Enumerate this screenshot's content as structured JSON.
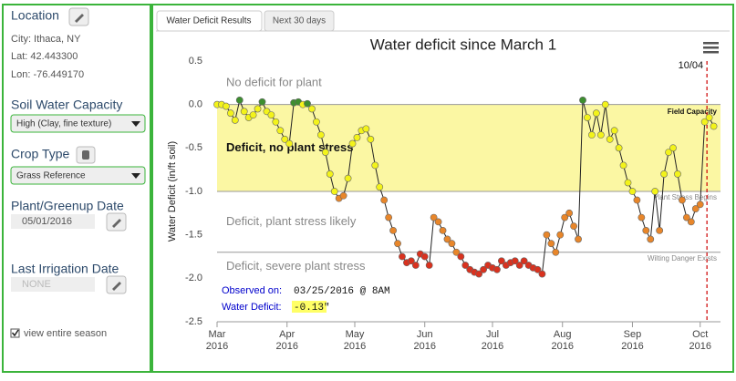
{
  "sidebar": {
    "location": {
      "title": "Location",
      "city": "City: Ithaca, NY",
      "lat": "Lat: 42.443300",
      "lon": "Lon: -76.449170"
    },
    "soil": {
      "title": "Soil Water Capacity",
      "selected": "High (Clay, fine texture)"
    },
    "crop": {
      "title": "Crop Type",
      "selected": "Grass Reference"
    },
    "plant_date": {
      "title": "Plant/Greenup Date",
      "value": "05/01/2016"
    },
    "irrigation": {
      "title": "Last Irrigation Date",
      "value": "NONE"
    },
    "season_checkbox": "view entire season"
  },
  "tabs": [
    "Water Deficit Results",
    "Next 30 days"
  ],
  "chart_data": {
    "type": "line",
    "title": "Water deficit since March 1",
    "y_label": "Water Deficit (in/ft soil)",
    "x": [
      0,
      2,
      4,
      6,
      8,
      10,
      12,
      14,
      16,
      18,
      20,
      22,
      24,
      26,
      28,
      30,
      32,
      34,
      36,
      38,
      40,
      42,
      44,
      46,
      48,
      50,
      52,
      54,
      56,
      58,
      60,
      62,
      64,
      66,
      68,
      70,
      72,
      74,
      76,
      78,
      80,
      82,
      84,
      86,
      88,
      90,
      92,
      94,
      96,
      98,
      100,
      102,
      104,
      106,
      108,
      110,
      112,
      114,
      116,
      118,
      120,
      122,
      124,
      126,
      128,
      130,
      132,
      134,
      136,
      138,
      140,
      142,
      144,
      146,
      148,
      150,
      152,
      154,
      156,
      158,
      160,
      162,
      164,
      166,
      168,
      170,
      172,
      174,
      176,
      178,
      180,
      182,
      184,
      186,
      188,
      190,
      192,
      194,
      196,
      198,
      200,
      202,
      204,
      206,
      208,
      210,
      212,
      214,
      216,
      218,
      220
    ],
    "values": [
      0.0,
      0.0,
      -0.02,
      -0.1,
      -0.18,
      0.05,
      -0.08,
      -0.15,
      -0.12,
      -0.05,
      0.03,
      -0.08,
      -0.12,
      -0.2,
      -0.3,
      -0.4,
      -0.45,
      0.02,
      0.03,
      0.0,
      0.01,
      -0.05,
      -0.2,
      -0.35,
      -0.55,
      -0.8,
      -1.0,
      -1.08,
      -1.05,
      -0.85,
      -0.45,
      -0.38,
      -0.3,
      -0.28,
      -0.4,
      -0.7,
      -0.95,
      -1.1,
      -1.3,
      -1.45,
      -1.6,
      -1.75,
      -1.82,
      -1.8,
      -1.85,
      -1.72,
      -1.75,
      -1.85,
      -1.3,
      -1.35,
      -1.45,
      -1.55,
      -1.6,
      -1.7,
      -1.75,
      -1.85,
      -1.9,
      -1.93,
      -1.95,
      -1.9,
      -1.85,
      -1.88,
      -1.9,
      -1.8,
      -1.85,
      -1.82,
      -1.8,
      -1.85,
      -1.8,
      -1.85,
      -1.88,
      -1.9,
      -1.95,
      -1.5,
      -1.6,
      -1.7,
      -1.5,
      -1.3,
      -1.25,
      -1.4,
      -1.55,
      0.05,
      -0.15,
      -0.35,
      -0.1,
      -0.35,
      0.0,
      -0.4,
      -0.3,
      -0.5,
      -0.7,
      -0.9,
      -1.0,
      -1.1,
      -1.3,
      -1.45,
      -1.55,
      -1.0,
      -1.45,
      -0.8,
      -0.55,
      -0.5,
      -0.8,
      -1.1,
      -1.3,
      -1.35,
      -1.2,
      -1.15,
      -0.2,
      -0.15,
      -0.25
    ],
    "xlim": [
      0,
      223
    ],
    "ylim": [
      -2.5,
      0.5
    ],
    "yticks": [
      0.5,
      {
        "value": 0,
        "label": "0.0"
      },
      -0.5,
      {
        "value": -1,
        "label": "-1.0"
      },
      -1.5,
      {
        "value": -2,
        "label": "-2.0"
      },
      -2.5
    ],
    "xticks": [
      {
        "value": 0,
        "label": "Mar 2016"
      },
      {
        "value": 31,
        "label": "Apr 2016"
      },
      {
        "value": 61,
        "label": "May 2016"
      },
      {
        "value": 92,
        "label": "Jun 2016"
      },
      {
        "value": 122,
        "label": "Jul 2016"
      },
      {
        "value": 153,
        "label": "Aug 2016"
      },
      {
        "value": 184,
        "label": "Sep 2016"
      },
      {
        "value": 214,
        "label": "Oct 2016"
      }
    ],
    "thresholds": [
      {
        "value": 0,
        "label": "Field Capacity"
      },
      {
        "value": -1,
        "label": "Plant Stress Begins"
      },
      {
        "value": -1.7,
        "label": "Wilting Danger Exists"
      }
    ],
    "regions": [
      "No deficit for plant",
      "Deficit, no plant stress",
      "Deficit, plant stress likely",
      "Deficit, severe plant stress"
    ],
    "colors": [
      "#3d8f2f",
      "#f3f31a",
      "#e8862a",
      "#d9321f"
    ],
    "band_color": "#fbf7a3",
    "marker": {
      "x": 217,
      "label": "10/04",
      "color": "#cc0000"
    },
    "tooltip": {
      "observed_label": "Observed on:",
      "observed_value": "03/25/2016 @ 8AM",
      "deficit_label": "Water Deficit:",
      "deficit_value": "-0.13\""
    }
  }
}
